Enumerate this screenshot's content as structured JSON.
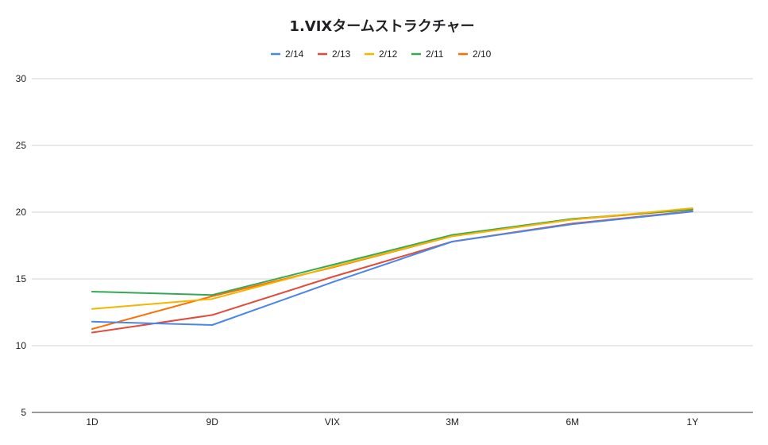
{
  "chart_data": {
    "type": "line",
    "title": "1.VIXタームストラクチャー",
    "xlabel": "",
    "ylabel": "",
    "categories": [
      "1D",
      "9D",
      "VIX",
      "3M",
      "6M",
      "1Y"
    ],
    "yticks": [
      5,
      10,
      15,
      20,
      25,
      30
    ],
    "ylim": [
      5,
      30
    ],
    "grid": true,
    "legend_position": "top",
    "series": [
      {
        "name": "2/14",
        "color": "#4a86e8",
        "values": [
          11.8,
          11.55,
          14.75,
          17.8,
          19.1,
          20.05
        ]
      },
      {
        "name": "2/13",
        "color": "#e04b3a",
        "values": [
          10.98,
          12.3,
          15.15,
          17.8,
          19.15,
          20.08
        ]
      },
      {
        "name": "2/12",
        "color": "#f4b400",
        "values": [
          12.75,
          13.5,
          15.9,
          18.2,
          19.45,
          20.3
        ]
      },
      {
        "name": "2/11",
        "color": "#34a853",
        "values": [
          14.05,
          13.8,
          16.05,
          18.3,
          19.5,
          20.2
        ]
      },
      {
        "name": "2/10",
        "color": "#ff6d00",
        "values": [
          11.25,
          13.7,
          15.85,
          18.2,
          19.45,
          20.2
        ]
      }
    ]
  }
}
